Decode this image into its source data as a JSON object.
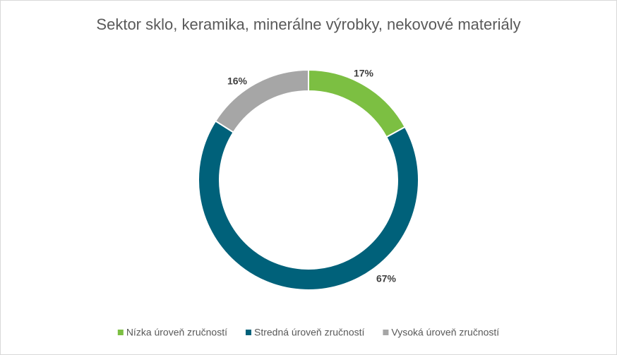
{
  "chart_data": {
    "type": "donut",
    "title": "Sektor sklo, keramika, minerálne výrobky, nekovové materiály",
    "categories": [
      "Nízka úroveň zručností",
      "Stredná úroveň zručností",
      "Vysoká úroveň zručností"
    ],
    "values": [
      17,
      67,
      16
    ],
    "value_labels": [
      "17%",
      "67%",
      "16%"
    ],
    "colors": [
      "#7cbf42",
      "#00617a",
      "#a6a6a6"
    ],
    "legend": "bottom"
  }
}
